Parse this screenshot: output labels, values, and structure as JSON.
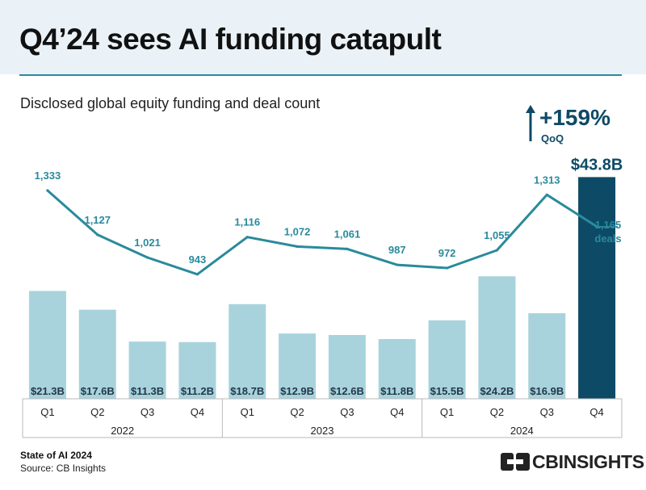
{
  "header": {
    "title": "Q4’24 sees AI funding catapult",
    "subtitle": "Disclosed global equity funding and deal count"
  },
  "chart_data": {
    "type": "bar",
    "categories": [
      "Q1",
      "Q2",
      "Q3",
      "Q4",
      "Q1",
      "Q2",
      "Q3",
      "Q4",
      "Q1",
      "Q2",
      "Q3",
      "Q4"
    ],
    "groups": [
      {
        "label": "2022",
        "count": 4
      },
      {
        "label": "2023",
        "count": 4
      },
      {
        "label": "2024",
        "count": 4
      }
    ],
    "series": [
      {
        "kind": "bar",
        "values": [
          21.3,
          17.6,
          11.3,
          11.2,
          18.7,
          12.9,
          12.6,
          11.8,
          15.5,
          24.2,
          16.9,
          43.8
        ],
        "labels": [
          "$21.3B",
          "$17.6B",
          "$11.3B",
          "$11.2B",
          "$18.7B",
          "$12.9B",
          "$12.6B",
          "$11.8B",
          "$15.5B",
          "$24.2B",
          "$16.9B",
          "$43.8B"
        ]
      },
      {
        "kind": "line",
        "values": [
          1333,
          1127,
          1021,
          943,
          1116,
          1072,
          1061,
          987,
          972,
          1055,
          1313,
          1165
        ],
        "labels": [
          "1,333",
          "1,127",
          "1,021",
          "943",
          "1,116",
          "1,072",
          "1,061",
          "987",
          "972",
          "1,055",
          "1,313",
          "1,165"
        ],
        "last_suffix": "deals"
      }
    ],
    "annotation": {
      "change": "+159%",
      "period": "QoQ"
    },
    "colors": {
      "bar": "#a8d3dc",
      "highlight": "#0d4a66",
      "line": "#2a8a9c",
      "text": "#1a1a1a"
    }
  },
  "footer": {
    "report": "State of AI 2024",
    "source": "Source: CB Insights",
    "brand": "CBINSIGHTS"
  }
}
